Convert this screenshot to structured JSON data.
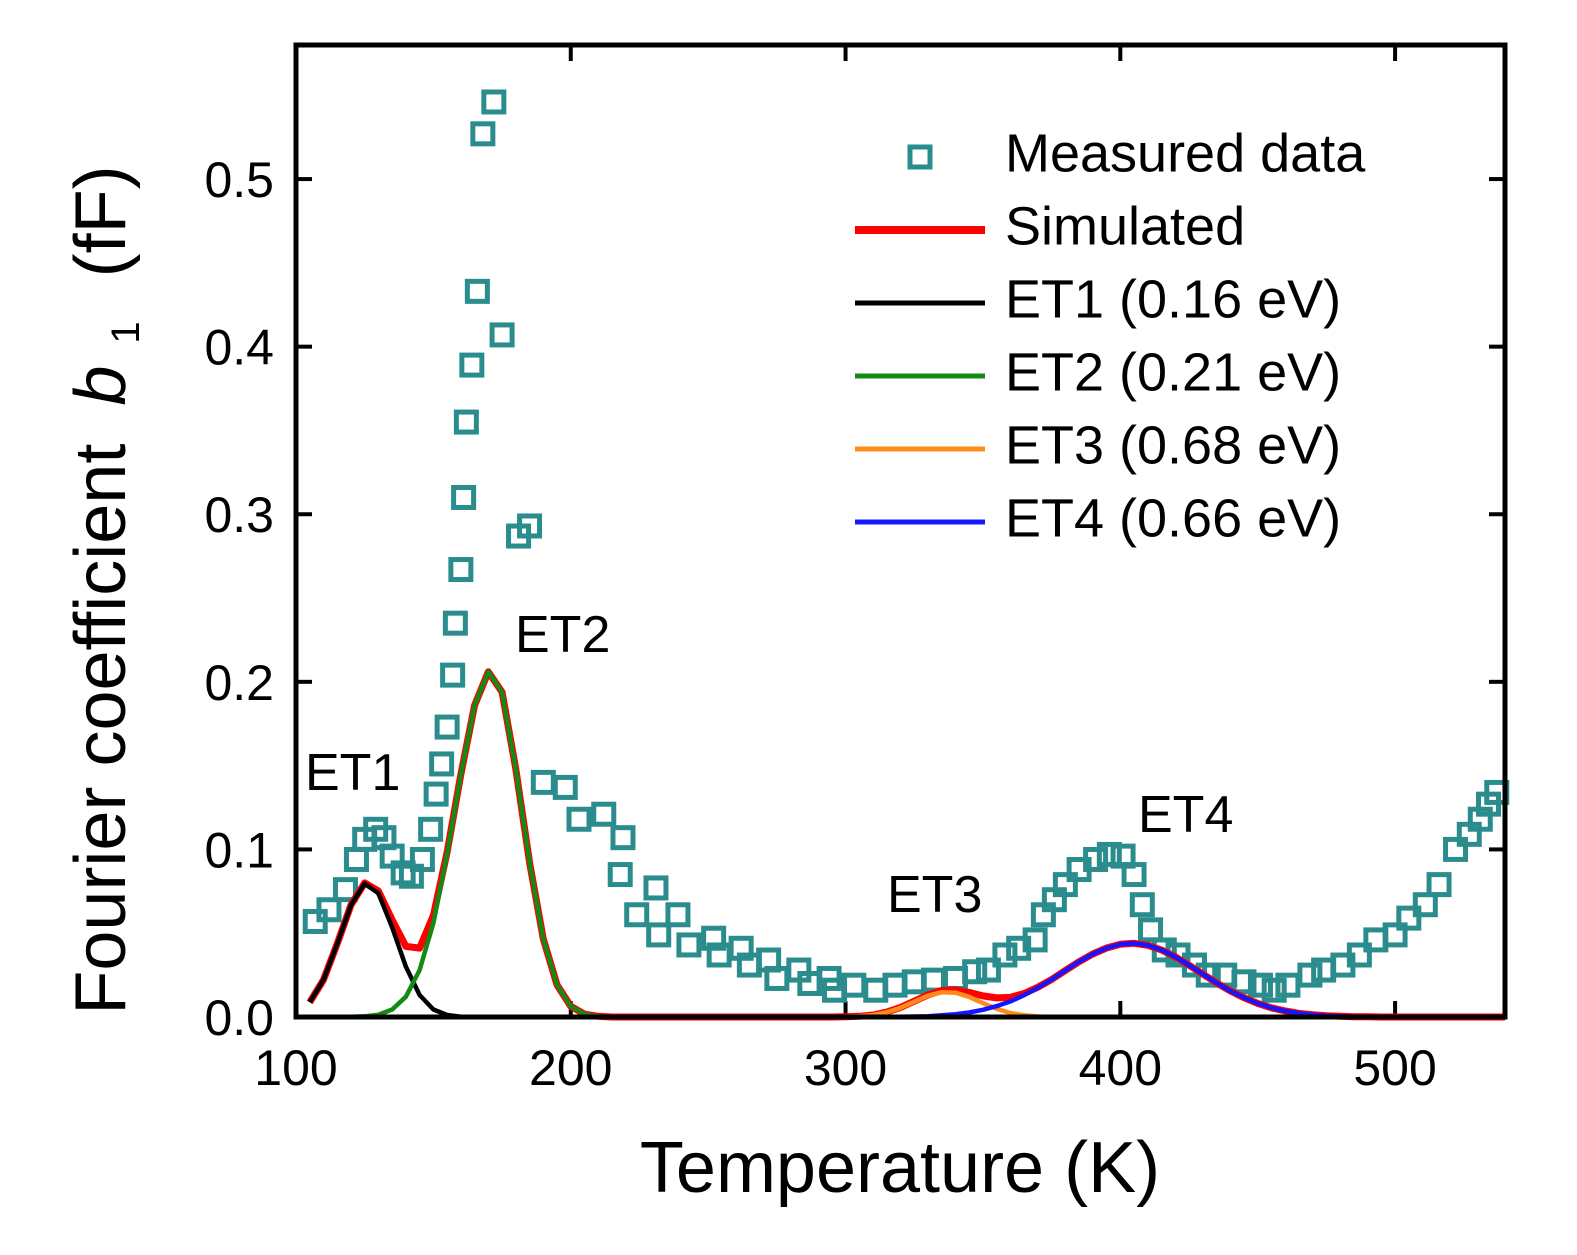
{
  "chart_data": {
    "type": "scatter",
    "x_label": "Temperature (K)",
    "y_label": {
      "text": "Fourier coefficient",
      "variable": "b",
      "subscript": "1",
      "unit": "(fF)"
    },
    "xlim": [
      100,
      540
    ],
    "ylim": [
      0,
      0.58
    ],
    "xticks": [
      100,
      200,
      300,
      400,
      500
    ],
    "yticks": [
      {
        "value": 0,
        "label": "0.0"
      },
      0.1,
      0.2,
      0.3,
      0.4,
      0.5
    ],
    "legend": "upper right",
    "annotations": [
      "ET1",
      "ET2",
      "ET3",
      "ET4"
    ],
    "series": [
      {
        "name": "Measured data",
        "style": "markers",
        "color": "#2a8c8c",
        "x": [
          107,
          112,
          118,
          122,
          125,
          129,
          132,
          135,
          139,
          142,
          146,
          149,
          151,
          153,
          155,
          157,
          158,
          160,
          161,
          162,
          164,
          166,
          168,
          172,
          175,
          181,
          185,
          190,
          198,
          203,
          212,
          219,
          218,
          224,
          231,
          232,
          239,
          243,
          252,
          254,
          262,
          265,
          272,
          275,
          283,
          287,
          294,
          296,
          303,
          311,
          318,
          325,
          332,
          340,
          347,
          352,
          358,
          363,
          369,
          372,
          376,
          380,
          385,
          391,
          396,
          401,
          405,
          408,
          411,
          416,
          421,
          427,
          432,
          438,
          445,
          451,
          456,
          461,
          469,
          474,
          481,
          487,
          493,
          500,
          505,
          511,
          516,
          522,
          527,
          531,
          534,
          537
        ],
        "values": [
          0.057,
          0.064,
          0.076,
          0.094,
          0.106,
          0.112,
          0.107,
          0.096,
          0.086,
          0.084,
          0.094,
          0.112,
          0.133,
          0.151,
          0.173,
          0.204,
          0.235,
          0.267,
          0.31,
          0.355,
          0.389,
          0.433,
          0.527,
          0.546,
          0.407,
          0.287,
          0.293,
          0.14,
          0.137,
          0.118,
          0.121,
          0.107,
          0.085,
          0.061,
          0.077,
          0.049,
          0.061,
          0.043,
          0.047,
          0.037,
          0.041,
          0.031,
          0.034,
          0.023,
          0.028,
          0.02,
          0.023,
          0.016,
          0.019,
          0.016,
          0.019,
          0.021,
          0.022,
          0.023,
          0.027,
          0.028,
          0.037,
          0.041,
          0.046,
          0.061,
          0.07,
          0.079,
          0.088,
          0.094,
          0.097,
          0.096,
          0.085,
          0.067,
          0.052,
          0.04,
          0.037,
          0.031,
          0.025,
          0.025,
          0.021,
          0.019,
          0.016,
          0.019,
          0.025,
          0.028,
          0.031,
          0.037,
          0.046,
          0.049,
          0.059,
          0.067,
          0.079,
          0.1,
          0.109,
          0.118,
          0.127,
          0.134
        ]
      },
      {
        "name": "Simulated",
        "style": "line",
        "color": "#ff0000",
        "x": [
          105,
          110,
          115,
          120,
          125,
          130,
          135,
          140,
          145,
          150,
          155,
          160,
          165,
          170,
          175,
          180,
          185,
          190,
          195,
          200,
          205,
          210,
          215,
          295,
          300,
          305,
          310,
          315,
          320,
          325,
          330,
          335,
          340,
          345,
          350,
          355,
          360,
          365,
          370,
          375,
          380,
          385,
          390,
          395,
          400,
          405,
          410,
          415,
          420,
          425,
          430,
          435,
          440,
          445,
          450,
          455,
          460,
          465,
          470,
          475,
          480,
          485,
          490,
          495,
          540
        ],
        "values": [
          0.0088,
          0.0222,
          0.0437,
          0.0669,
          0.08,
          0.0752,
          0.0579,
          0.0421,
          0.0411,
          0.0606,
          0.0983,
          0.1449,
          0.186,
          0.206,
          0.1938,
          0.148,
          0.0921,
          0.0466,
          0.0192,
          0.0064,
          0.0017,
          0.0004,
          0,
          0,
          0.0001,
          0.0004,
          0.0012,
          0.0029,
          0.0057,
          0.0094,
          0.0132,
          0.0158,
          0.0162,
          0.0147,
          0.0126,
          0.0114,
          0.0117,
          0.014,
          0.0178,
          0.0224,
          0.0278,
          0.033,
          0.0376,
          0.0412,
          0.0434,
          0.044,
          0.0428,
          0.04,
          0.0359,
          0.0309,
          0.0256,
          0.0204,
          0.0156,
          0.0115,
          0.0081,
          0.0055,
          0.0036,
          0.0022,
          0.0014,
          0.0008,
          0.0004,
          0.0002,
          0.0001,
          0,
          0
        ]
      },
      {
        "name": "ET1 (0.16 eV)",
        "style": "line",
        "color": "#000000",
        "x": [
          105,
          110,
          115,
          120,
          125,
          130,
          135,
          140,
          145,
          150,
          155,
          160,
          165,
          540
        ],
        "values": [
          0.0088,
          0.0222,
          0.0437,
          0.0668,
          0.0796,
          0.0738,
          0.0534,
          0.03,
          0.0131,
          0.0045,
          0.0012,
          0.0002,
          0,
          0
        ]
      },
      {
        "name": "ET2 (0.21 eV)",
        "style": "line",
        "color": "#138a13",
        "x": [
          105,
          115,
          120,
          125,
          130,
          135,
          140,
          145,
          150,
          155,
          160,
          165,
          170,
          175,
          180,
          185,
          190,
          195,
          200,
          205,
          210,
          215,
          540
        ],
        "values": [
          0,
          0,
          0.0001,
          0.0004,
          0.0014,
          0.0045,
          0.0121,
          0.028,
          0.0561,
          0.0971,
          0.1447,
          0.186,
          0.206,
          0.1938,
          0.148,
          0.0921,
          0.0466,
          0.0192,
          0.0064,
          0.0017,
          0.0004,
          0,
          0
        ]
      },
      {
        "name": "ET3 (0.68 eV)",
        "style": "line",
        "color": "#ff8c1a",
        "x": [
          105,
          295,
          300,
          305,
          310,
          315,
          320,
          325,
          330,
          335,
          340,
          345,
          350,
          355,
          360,
          365,
          370,
          375,
          540
        ],
        "values": [
          0,
          0,
          0.0001,
          0.0004,
          0.0012,
          0.0028,
          0.0055,
          0.0091,
          0.0127,
          0.0148,
          0.0145,
          0.012,
          0.0083,
          0.0049,
          0.0024,
          0.001,
          0.0003,
          0,
          0
        ]
      },
      {
        "name": "ET4 (0.66 eV)",
        "style": "line",
        "color": "#1515ff",
        "x": [
          105,
          310,
          315,
          320,
          325,
          330,
          335,
          340,
          345,
          350,
          355,
          360,
          365,
          370,
          375,
          380,
          385,
          390,
          395,
          400,
          405,
          410,
          415,
          420,
          425,
          430,
          435,
          440,
          445,
          450,
          455,
          460,
          465,
          470,
          475,
          480,
          485,
          490,
          495,
          540
        ],
        "values": [
          0,
          0,
          0.0001,
          0.0002,
          0.0003,
          0.0005,
          0.001,
          0.0017,
          0.0027,
          0.0043,
          0.0065,
          0.0093,
          0.013,
          0.0175,
          0.0224,
          0.0278,
          0.033,
          0.0376,
          0.0412,
          0.0434,
          0.044,
          0.0428,
          0.04,
          0.0359,
          0.0309,
          0.0256,
          0.0204,
          0.0156,
          0.0115,
          0.0081,
          0.0055,
          0.0036,
          0.0022,
          0.0014,
          0.0008,
          0.0004,
          0.0002,
          0.0001,
          0,
          0
        ]
      }
    ]
  }
}
